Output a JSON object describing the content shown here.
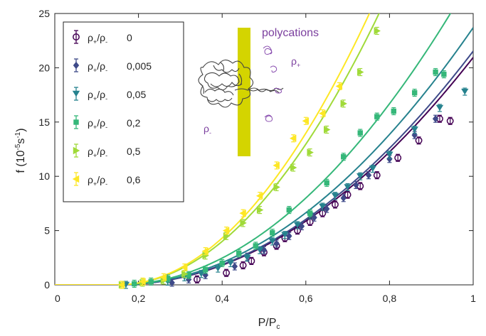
{
  "chart_data": {
    "type": "scatter",
    "xlabel": "P/P",
    "xlabel_sub": "c",
    "ylabel": "f (10",
    "ylabel_sup": "-5",
    "ylabel_unit": "s",
    "ylabel_unit_sup": "-1",
    "ylabel_end": ")",
    "xlim": [
      0,
      1
    ],
    "ylim": [
      0,
      25
    ],
    "x_ticks": [
      0,
      0.2,
      0.4,
      0.6,
      0.8,
      1
    ],
    "x_tick_labels": [
      "0",
      "0,2",
      "0,4",
      "0,6",
      "0,8",
      "1"
    ],
    "y_ticks": [
      0,
      5,
      10,
      15,
      20,
      25
    ],
    "y_tick_labels": [
      "0",
      "5",
      "10",
      "15",
      "20",
      "25"
    ],
    "grid": false,
    "legend_position": "top-left",
    "series": [
      {
        "name": "ρ₊/ρ₋ 0",
        "name_main": "ρ",
        "name_sub1": "+",
        "name_mid": "/ρ",
        "name_sub2": "-",
        "name_val": "0",
        "color": "#440154",
        "marker": "circle",
        "x": [
          0.34,
          0.41,
          0.45,
          0.47,
          0.5,
          0.53,
          0.55,
          0.58,
          0.61,
          0.64,
          0.67,
          0.7,
          0.73,
          0.77,
          0.82,
          0.87,
          0.92,
          0.945
        ],
        "y": [
          0.5,
          1.1,
          1.8,
          2.2,
          3.0,
          3.6,
          4.3,
          5.0,
          5.8,
          6.6,
          7.4,
          8.3,
          9.1,
          10.1,
          11.7,
          13.3,
          15.3,
          15.1
        ],
        "curve_a": 29.0
      },
      {
        "name": "ρ₊/ρ₋ 0,005",
        "name_main": "ρ",
        "name_sub1": "+",
        "name_mid": "/ρ",
        "name_sub2": "-",
        "name_val": "0,005",
        "color": "#3e4a89",
        "marker": "diamond",
        "x": [
          0.28,
          0.32,
          0.36,
          0.43,
          0.46,
          0.5,
          0.53,
          0.56,
          0.59,
          0.62,
          0.65,
          0.69,
          0.72,
          0.75,
          0.8,
          0.86,
          0.91
        ],
        "y": [
          0.2,
          0.5,
          0.9,
          1.7,
          2.6,
          3.2,
          3.8,
          4.5,
          5.4,
          6.2,
          7.0,
          8.0,
          9.2,
          10.1,
          11.6,
          13.8,
          15.3
        ],
        "curve_a": 29.8
      },
      {
        "name": "ρ₊/ρ₋ 0,05",
        "name_main": "ρ",
        "name_sub1": "+",
        "name_mid": "/ρ",
        "name_sub2": "-",
        "name_val": "0,05",
        "color": "#26828e",
        "marker": "triangle-down",
        "x": [
          0.17,
          0.27,
          0.31,
          0.35,
          0.39,
          0.42,
          0.46,
          0.49,
          0.52,
          0.55,
          0.58,
          0.61,
          0.64,
          0.67,
          0.7,
          0.73,
          0.76,
          0.8,
          0.86,
          0.92,
          0.98
        ],
        "y": [
          0,
          0.3,
          0.7,
          1.0,
          1.5,
          2.0,
          2.5,
          3.2,
          4.0,
          4.6,
          5.5,
          6.4,
          7.2,
          8.2,
          9.0,
          10.0,
          10.7,
          12.0,
          14.3,
          16.3,
          17.8
        ],
        "curve_a": 32.8
      },
      {
        "name": "ρ₊/ρ₋ 0,2",
        "name_main": "ρ",
        "name_sub1": "+",
        "name_mid": "/ρ",
        "name_sub2": "-",
        "name_val": "0,2",
        "color": "#35b779",
        "marker": "square",
        "x": [
          0.19,
          0.23,
          0.27,
          0.32,
          0.36,
          0.4,
          0.44,
          0.48,
          0.52,
          0.56,
          0.61,
          0.65,
          0.69,
          0.73,
          0.77,
          0.81,
          0.86,
          0.91,
          0.93
        ],
        "y": [
          0.1,
          0.3,
          0.6,
          0.9,
          1.4,
          2.0,
          2.9,
          3.6,
          4.8,
          6.9,
          6.6,
          9.4,
          11.8,
          14.0,
          15.5,
          16.0,
          17.7,
          19.6,
          19.4
        ],
        "curve_a": 39.5
      },
      {
        "name": "ρ₊/ρ₋ 0,5",
        "name_main": "ρ",
        "name_sub1": "+",
        "name_mid": "/ρ",
        "name_sub2": "-",
        "name_val": "0,5",
        "color": "#a0da39",
        "marker": "triangle-right",
        "x": [
          0.16,
          0.21,
          0.26,
          0.31,
          0.36,
          0.41,
          0.45,
          0.49,
          0.53,
          0.57,
          0.61,
          0.65,
          0.69,
          0.73,
          0.77
        ],
        "y": [
          0.0,
          0.2,
          0.4,
          1.0,
          2.7,
          4.5,
          5.7,
          6.9,
          9.0,
          10.8,
          12.2,
          14.3,
          16.7,
          19.6,
          23.4
        ],
        "curve_a": 64.0
      },
      {
        "name": "ρ₊/ρ₋ 0,6",
        "name_main": "ρ",
        "name_sub1": "+",
        "name_mid": "/ρ",
        "name_sub2": "-",
        "name_val": "0,6",
        "color": "#fde725",
        "marker": "triangle-left",
        "x": [
          0.16,
          0.21,
          0.26,
          0.31,
          0.36,
          0.41,
          0.45,
          0.49,
          0.53,
          0.57,
          0.6,
          0.64,
          0.68
        ],
        "y": [
          0.0,
          0.3,
          0.7,
          1.6,
          3.1,
          5.0,
          6.6,
          8.2,
          11.0,
          13.5,
          15.1,
          15.8,
          18.3
        ],
        "curve_a": 69.0
      }
    ],
    "inset": {
      "label_polycations": "polycations",
      "label_rho_plus": "ρ",
      "label_rho_plus_sub": "+",
      "label_rho_minus": "ρ",
      "label_rho_minus_sub": "-",
      "bar_color": "#d4d400",
      "text_color": "#7b3f9e"
    }
  }
}
